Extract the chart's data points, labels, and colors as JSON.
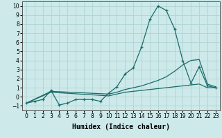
{
  "xlabel": "Humidex (Indice chaleur)",
  "xlim": [
    -0.5,
    23.5
  ],
  "ylim": [
    -1.5,
    10.5
  ],
  "xticks": [
    0,
    1,
    2,
    3,
    4,
    5,
    6,
    7,
    8,
    9,
    10,
    11,
    12,
    13,
    14,
    15,
    16,
    17,
    18,
    19,
    20,
    21,
    22,
    23
  ],
  "yticks": [
    -1,
    0,
    1,
    2,
    3,
    4,
    5,
    6,
    7,
    8,
    9,
    10
  ],
  "bg_color": "#cde9e9",
  "grid_color": "#afd4d4",
  "line_color": "#1a6b6b",
  "line1_x": [
    0,
    1,
    2,
    3,
    4,
    5,
    6,
    7,
    8,
    9,
    10,
    11,
    12,
    13,
    14,
    15,
    16,
    17,
    18,
    19,
    20,
    21,
    22,
    23
  ],
  "line1_y": [
    -0.7,
    -0.5,
    -0.3,
    0.7,
    -0.9,
    -0.7,
    -0.3,
    -0.3,
    -0.3,
    -0.5,
    0.4,
    1.1,
    2.5,
    3.2,
    5.5,
    8.5,
    10.0,
    9.5,
    7.5,
    4.0,
    1.5,
    3.3,
    1.2,
    1.0
  ],
  "line2_x": [
    0,
    3,
    10,
    11,
    12,
    13,
    14,
    15,
    16,
    17,
    18,
    19,
    20,
    21,
    22,
    23
  ],
  "line2_y": [
    -0.7,
    0.6,
    0.3,
    0.5,
    0.8,
    1.0,
    1.2,
    1.5,
    1.8,
    2.2,
    2.8,
    3.5,
    4.0,
    4.1,
    1.4,
    1.1
  ],
  "line3_x": [
    0,
    3,
    10,
    11,
    12,
    13,
    14,
    15,
    16,
    17,
    18,
    19,
    20,
    21,
    22,
    23
  ],
  "line3_y": [
    -0.7,
    0.5,
    0.1,
    0.3,
    0.5,
    0.6,
    0.7,
    0.8,
    0.9,
    1.0,
    1.1,
    1.2,
    1.3,
    1.4,
    1.0,
    1.0
  ],
  "axis_fontsize": 7,
  "tick_fontsize": 5.5
}
